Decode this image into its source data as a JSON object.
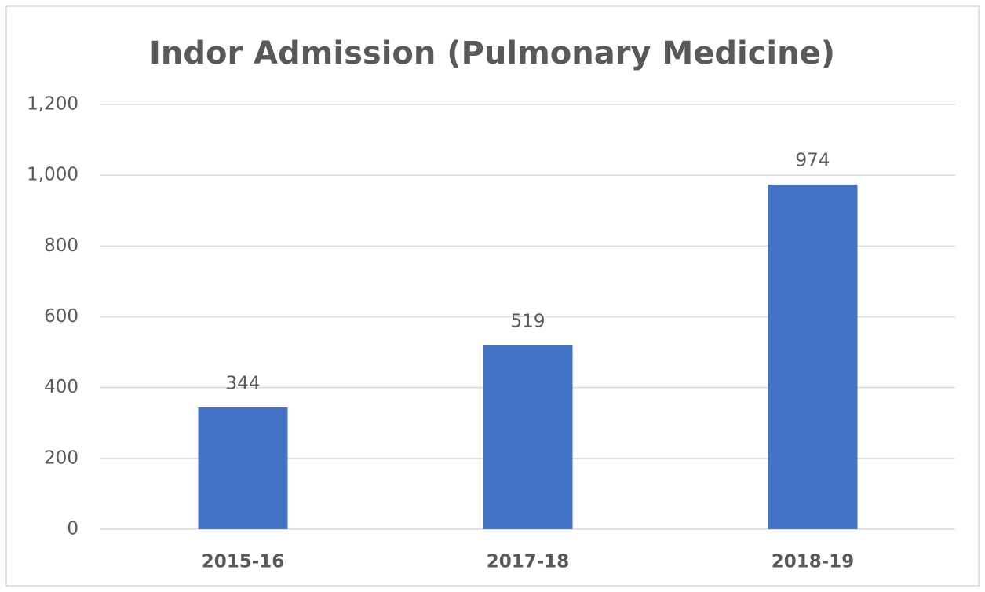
{
  "chart_data": {
    "type": "bar",
    "title": "Indor Admission (Pulmonary Medicine)",
    "categories": [
      "2015-16",
      "2017-18",
      "2018-19"
    ],
    "values": [
      344,
      519,
      974
    ],
    "color": "#4472c4",
    "ylim": [
      0,
      1200
    ],
    "yticks": [
      0,
      200,
      400,
      600,
      800,
      {
        "value": 1000,
        "label": "1,000"
      },
      {
        "value": 1200,
        "label": "1,200"
      }
    ],
    "grid": true
  }
}
